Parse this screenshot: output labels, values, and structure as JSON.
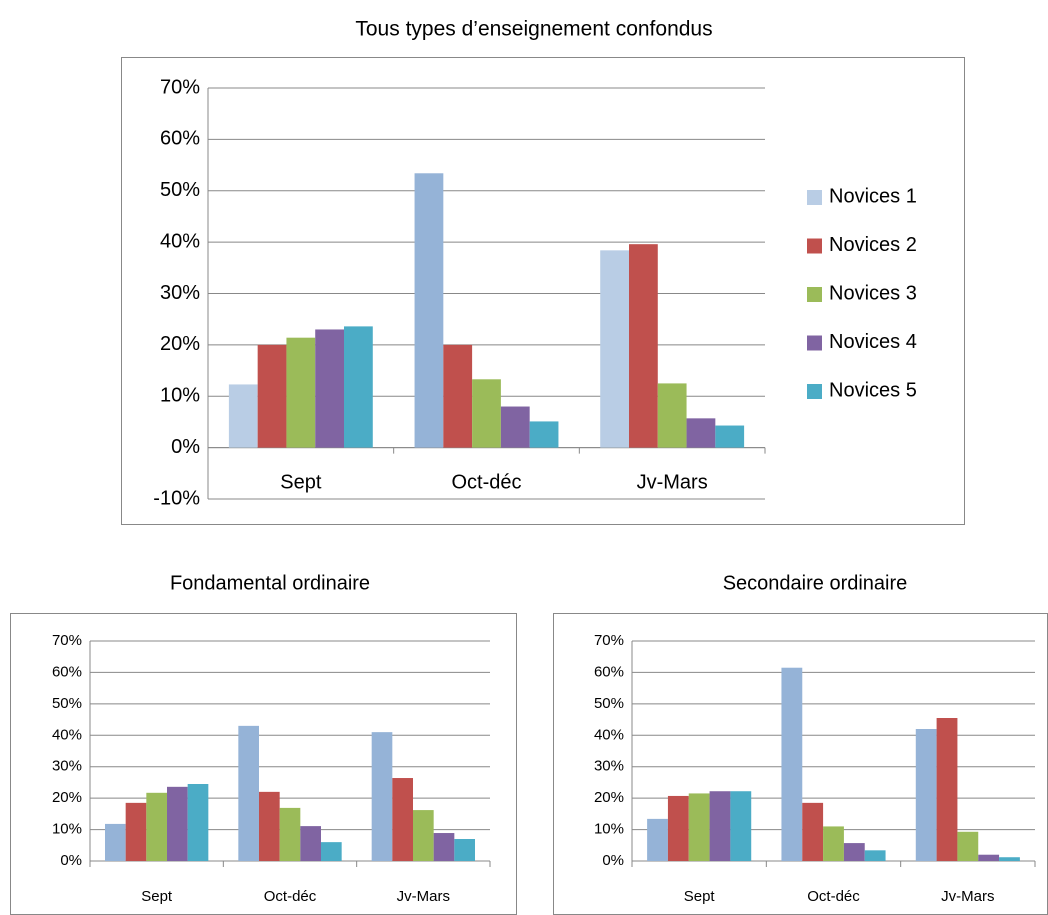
{
  "chart_data": [
    {
      "type": "bar",
      "title": "Tous types d’enseignement confondus",
      "categories": [
        "Sept",
        "Oct-déc",
        "Jv-Mars"
      ],
      "series": [
        {
          "name": "Novices 1",
          "color": "#b9cde5",
          "colors": [
            "#b9cde5",
            "#95b3d7",
            "#b9cde5"
          ],
          "values": [
            12.3,
            53.4,
            38.4
          ]
        },
        {
          "name": "Novices 2",
          "color": "#c0504d",
          "values": [
            20,
            20,
            39.6
          ]
        },
        {
          "name": "Novices 3",
          "color": "#9bbb59",
          "values": [
            21.4,
            13.3,
            12.5
          ]
        },
        {
          "name": "Novices 4",
          "color": "#8064a2",
          "values": [
            23,
            8,
            5.7
          ]
        },
        {
          "name": "Novices 5",
          "color": "#4bacc6",
          "values": [
            23.6,
            5.1,
            4.3
          ]
        }
      ],
      "ylim": [
        -10,
        70
      ],
      "yticks": [
        {
          "value": -10,
          "label": "-10%"
        },
        {
          "value": 0,
          "label": "0%"
        },
        {
          "value": 10,
          "label": "10%"
        },
        {
          "value": 20,
          "label": "20%"
        },
        {
          "value": 30,
          "label": "30%"
        },
        {
          "value": 40,
          "label": "40%"
        },
        {
          "value": 50,
          "label": "50%"
        },
        {
          "value": 60,
          "label": "60%"
        },
        {
          "value": 70,
          "label": "70%"
        }
      ],
      "grid": true,
      "legend": "right"
    },
    {
      "type": "bar",
      "title": "Fondamental ordinaire",
      "categories": [
        "Sept",
        "Oct-déc",
        "Jv-Mars"
      ],
      "series": [
        {
          "color": "#95b3d7",
          "values": [
            11.8,
            43,
            41
          ]
        },
        {
          "color": "#c0504d",
          "values": [
            18.5,
            22,
            26.4
          ]
        },
        {
          "color": "#9bbb59",
          "values": [
            21.7,
            16.9,
            16.2
          ]
        },
        {
          "color": "#8064a2",
          "values": [
            23.6,
            11.1,
            8.9
          ]
        },
        {
          "color": "#4bacc6",
          "values": [
            24.5,
            6,
            7
          ]
        }
      ],
      "ylim": [
        0,
        70
      ],
      "yticks": [
        {
          "value": 0,
          "label": "0%"
        },
        {
          "value": 10,
          "label": "10%"
        },
        {
          "value": 20,
          "label": "20%"
        },
        {
          "value": 30,
          "label": "30%"
        },
        {
          "value": 40,
          "label": "40%"
        },
        {
          "value": 50,
          "label": "50%"
        },
        {
          "value": 60,
          "label": "60%"
        },
        {
          "value": 70,
          "label": "70%"
        }
      ],
      "grid": true
    },
    {
      "type": "bar",
      "title": "Secondaire ordinaire",
      "categories": [
        "Sept",
        "Oct-déc",
        "Jv-Mars"
      ],
      "series": [
        {
          "color": "#95b3d7",
          "values": [
            13.4,
            61.5,
            42
          ]
        },
        {
          "color": "#c0504d",
          "values": [
            20.7,
            18.5,
            45.5
          ]
        },
        {
          "color": "#9bbb59",
          "values": [
            21.5,
            11,
            9.3
          ]
        },
        {
          "color": "#8064a2",
          "values": [
            22.2,
            5.7,
            2
          ]
        },
        {
          "color": "#4bacc6",
          "values": [
            22.2,
            3.4,
            1.2
          ]
        }
      ],
      "ylim": [
        0,
        70
      ],
      "yticks": [
        {
          "value": 0,
          "label": "0%"
        },
        {
          "value": 10,
          "label": "10%"
        },
        {
          "value": 20,
          "label": "20%"
        },
        {
          "value": 30,
          "label": "30%"
        },
        {
          "value": 40,
          "label": "40%"
        },
        {
          "value": 50,
          "label": "50%"
        },
        {
          "value": 60,
          "label": "60%"
        },
        {
          "value": 70,
          "label": "70%"
        }
      ],
      "grid": true
    }
  ]
}
